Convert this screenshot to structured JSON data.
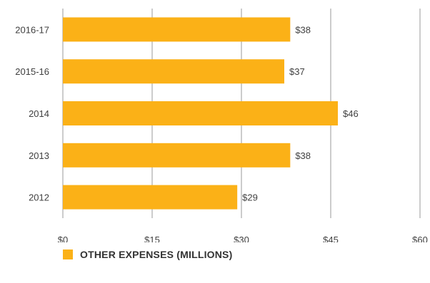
{
  "colors": {
    "bar": "#FBB117",
    "grid": "#9a9a9a",
    "text": "#404040"
  },
  "chart_data": {
    "type": "bar",
    "orientation": "horizontal",
    "categories": [
      "2016-17",
      "2015-16",
      "2014",
      "2013",
      "2012"
    ],
    "values": [
      38.2,
      37.2,
      46.2,
      38.2,
      29.3
    ],
    "data_labels": [
      "$38",
      "$37",
      "$46",
      "$38",
      "$29"
    ],
    "xlim": [
      0,
      60
    ],
    "x_ticks": [
      0,
      15,
      30,
      45,
      60
    ],
    "x_tick_labels": [
      "$0",
      "$15",
      "$30",
      "$45",
      "$60"
    ],
    "grid": "vertical",
    "legend_position": "bottom-left",
    "series": [
      {
        "name": "OTHER EXPENSES (MILLIONS)",
        "values": [
          38.2,
          37.2,
          46.2,
          38.2,
          29.3
        ]
      }
    ]
  }
}
